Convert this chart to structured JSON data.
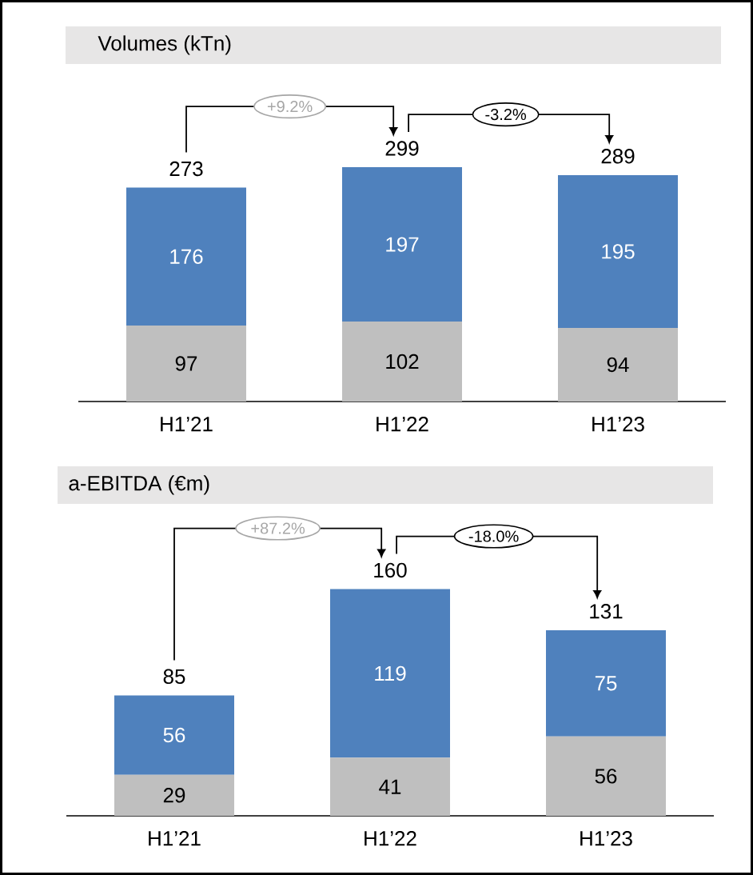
{
  "chart_data": [
    {
      "type": "bar",
      "stacked": true,
      "title": "Volumes (kTn)",
      "categories": [
        "H1’21",
        "H1’22",
        "H1’23"
      ],
      "series": [
        {
          "color": "#bfbfbf",
          "values": [
            97,
            102,
            94
          ]
        },
        {
          "color": "#4f81bd",
          "values": [
            176,
            197,
            195
          ]
        }
      ],
      "data_labels": true,
      "totals": [
        "273",
        "299",
        "289"
      ],
      "annotations": [
        "+9.2%",
        "-3.2%"
      ]
    },
    {
      "type": "bar",
      "stacked": true,
      "title": "a-EBITDA (€m)",
      "categories": [
        "H1’21",
        "H1’22",
        "H1’23"
      ],
      "series": [
        {
          "color": "#bfbfbf",
          "values": [
            29,
            41,
            56
          ]
        },
        {
          "color": "#4f81bd",
          "values": [
            56,
            119,
            75
          ]
        }
      ],
      "data_labels": true,
      "totals": [
        "85",
        "160",
        "131"
      ],
      "annotations": [
        "+87.2%",
        "-18.0%"
      ]
    }
  ]
}
